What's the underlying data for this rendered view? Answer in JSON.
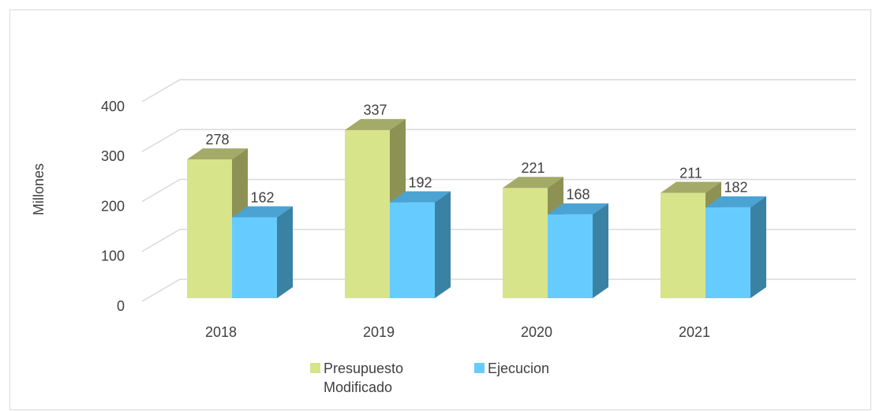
{
  "chart_data": {
    "type": "bar3d",
    "y_label": "Millones",
    "categories": [
      "2018",
      "2019",
      "2020",
      "2021"
    ],
    "series": [
      {
        "name": "Presupuesto Modificado",
        "color": "#d7e48a",
        "values": [
          278,
          337,
          221,
          211
        ]
      },
      {
        "name": "Ejecucion",
        "color": "#66ccff",
        "values": [
          162,
          192,
          168,
          182
        ]
      }
    ],
    "ylim": [
      0,
      400
    ],
    "yticks": [
      0,
      100,
      200,
      300,
      400
    ],
    "grid": true,
    "legend": "bottom"
  }
}
